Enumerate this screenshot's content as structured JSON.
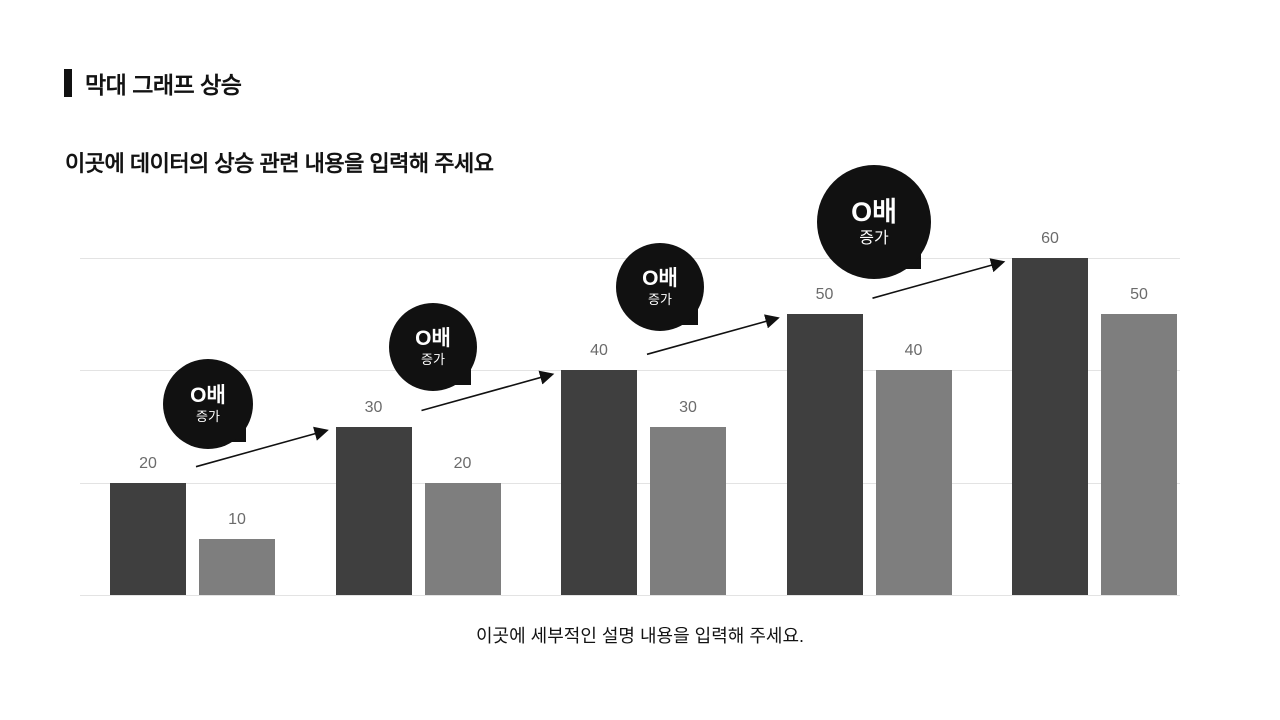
{
  "page": {
    "title": "막대 그래프 상승",
    "subtitle": "이곳에 데이터의 상승 관련 내용을 입력해 주세요",
    "caption": "이곳에 세부적인 설명 내용을 입력해 주세요."
  },
  "chart_data": {
    "type": "bar",
    "categories": [
      "",
      "",
      "",
      "",
      ""
    ],
    "series": [
      {
        "name": "primary-dark",
        "color": "#3f3f3f",
        "values": [
          20,
          30,
          40,
          50,
          60
        ]
      },
      {
        "name": "secondary-gray",
        "color": "#7e7e7e",
        "values": [
          10,
          20,
          30,
          40,
          50
        ]
      }
    ],
    "ylim": [
      0,
      60
    ],
    "gridline_values": [
      0,
      20,
      40,
      60
    ],
    "grid": true,
    "value_labels": true,
    "value_label_color": "#6b6b6b",
    "legend": "none",
    "annotations": [
      {
        "main": "O배",
        "sub": "증가"
      },
      {
        "main": "O배",
        "sub": "증가"
      },
      {
        "main": "O배",
        "sub": "증가"
      },
      {
        "main": "O배",
        "sub": "증가"
      }
    ],
    "annotation_color": "#111111",
    "annotation_text_color": "#ffffff",
    "arrow_color": "#111111"
  }
}
